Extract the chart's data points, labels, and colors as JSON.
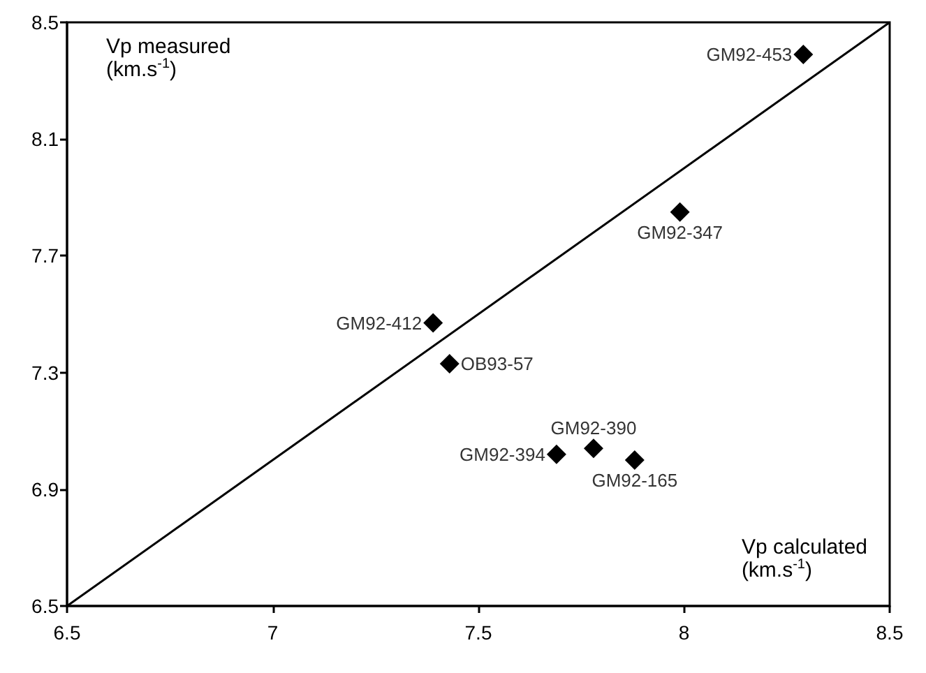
{
  "chart_data": {
    "type": "scatter",
    "xlabel": "Vp calculated\n(km.s$^{-1}$)",
    "ylabel": "Vp measured\n(km.s$^{-1}$)",
    "xlim": [
      6.5,
      8.5
    ],
    "xticks": [
      6.5,
      7,
      7.5,
      8,
      8.5
    ],
    "ylim": [
      6.5,
      8.5
    ],
    "yticks": [
      6.5,
      6.9,
      7.3,
      7.7,
      8.1,
      8.5
    ],
    "grid": false,
    "series": [
      {
        "marker": "diamond",
        "color": "#000000",
        "x": [
          8.29,
          7.99,
          7.39,
          7.43,
          7.78,
          7.69,
          7.88
        ],
        "values": [
          8.39,
          7.85,
          7.47,
          7.33,
          7.04,
          7.02,
          7.0
        ]
      },
      {
        "type": "line",
        "marker": "none",
        "color": "#000000",
        "x": [
          6.5,
          8.5
        ],
        "values": [
          6.5,
          8.5
        ]
      }
    ],
    "annotations": [
      {
        "text": "GM92-453",
        "x": 8.29,
        "y": 8.39
      },
      {
        "text": "GM92-347",
        "x": 7.99,
        "y": 7.85
      },
      {
        "text": "GM92-412",
        "x": 7.39,
        "y": 7.47
      },
      {
        "text": "OB93-57",
        "x": 7.43,
        "y": 7.33
      },
      {
        "text": "GM92-390",
        "x": 7.78,
        "y": 7.04
      },
      {
        "text": "GM92-394",
        "x": 7.69,
        "y": 7.02
      },
      {
        "text": "GM92-165",
        "x": 7.88,
        "y": 7.0
      }
    ]
  }
}
